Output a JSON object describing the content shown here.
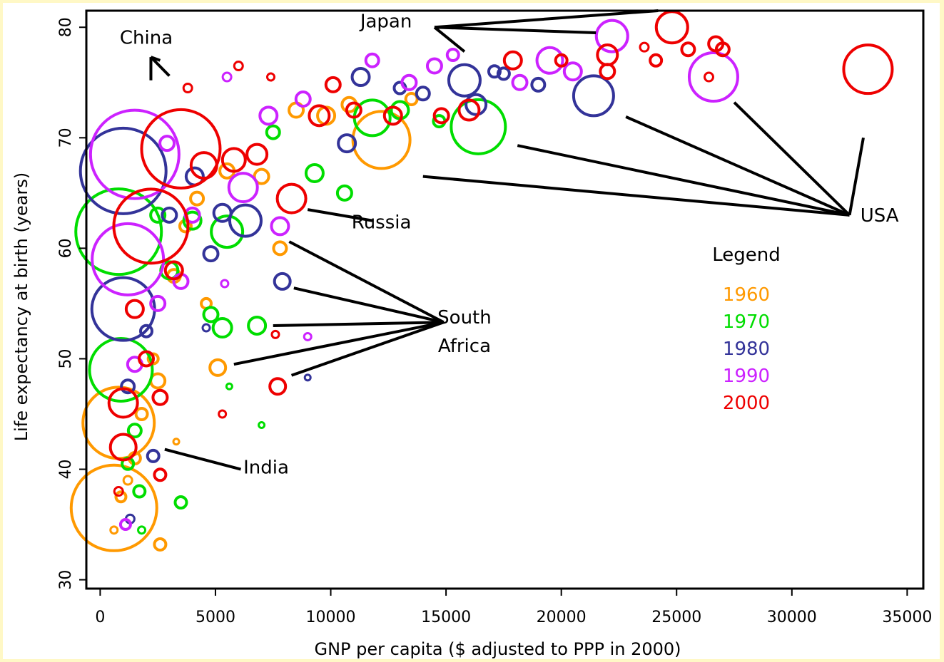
{
  "chart_data": {
    "type": "scatter",
    "title": "",
    "xlabel": "GNP per capita ($ adjusted to PPP in 2000)",
    "ylabel": "Life expectancy at birth (years)",
    "xlim": [
      -600,
      35700
    ],
    "ylim": [
      29.2,
      81.5
    ],
    "x_ticks": [
      0,
      5000,
      10000,
      15000,
      20000,
      25000,
      30000,
      35000
    ],
    "x_tick_labels": [
      "0",
      "5000",
      "10000",
      "15000",
      "20000",
      "25000",
      "30000",
      "35000"
    ],
    "y_ticks": [
      30,
      40,
      50,
      60,
      70,
      80
    ],
    "y_tick_labels": [
      "30",
      "40",
      "50",
      "60",
      "70",
      "80"
    ],
    "grid": false,
    "legend": {
      "title": "Legend",
      "position": "right",
      "entries": [
        {
          "label": "1960",
          "color": "#ff9900"
        },
        {
          "label": "1970",
          "color": "#00dd00"
        },
        {
          "label": "1980",
          "color": "#333399"
        },
        {
          "label": "1990",
          "color": "#cc22ff"
        },
        {
          "label": "2000",
          "color": "#ee0000"
        }
      ]
    },
    "marker_note": "bubble size proportional to population",
    "series": [
      {
        "name": "1960",
        "color": "#ff9900",
        "points": [
          {
            "x": 600,
            "y": 36.5,
            "r": 60
          },
          {
            "x": 800,
            "y": 44.2,
            "r": 50
          },
          {
            "x": 12200,
            "y": 69.8,
            "r": 40
          },
          {
            "x": 5100,
            "y": 49.2,
            "r": 11
          },
          {
            "x": 7800,
            "y": 60.0,
            "r": 9
          },
          {
            "x": 2500,
            "y": 48.0,
            "r": 10
          },
          {
            "x": 1500,
            "y": 41.0,
            "r": 8
          },
          {
            "x": 2600,
            "y": 33.2,
            "r": 8
          },
          {
            "x": 3200,
            "y": 57.5,
            "r": 9
          },
          {
            "x": 4200,
            "y": 64.5,
            "r": 9
          },
          {
            "x": 8500,
            "y": 72.5,
            "r": 10
          },
          {
            "x": 9800,
            "y": 72.0,
            "r": 12
          },
          {
            "x": 10800,
            "y": 73.0,
            "r": 10
          },
          {
            "x": 7000,
            "y": 66.5,
            "r": 10
          },
          {
            "x": 900,
            "y": 37.5,
            "r": 7
          },
          {
            "x": 1800,
            "y": 45.0,
            "r": 8
          },
          {
            "x": 2300,
            "y": 50.0,
            "r": 7
          },
          {
            "x": 3700,
            "y": 62.0,
            "r": 8
          },
          {
            "x": 5500,
            "y": 67.0,
            "r": 10
          },
          {
            "x": 600,
            "y": 34.5,
            "r": 5
          },
          {
            "x": 1200,
            "y": 39.0,
            "r": 6
          },
          {
            "x": 3300,
            "y": 42.5,
            "r": 4
          },
          {
            "x": 13500,
            "y": 73.5,
            "r": 8
          },
          {
            "x": 4600,
            "y": 55.0,
            "r": 7
          }
        ]
      },
      {
        "name": "1970",
        "color": "#00dd00",
        "points": [
          {
            "x": 800,
            "y": 61.5,
            "r": 60
          },
          {
            "x": 900,
            "y": 49.0,
            "r": 44
          },
          {
            "x": 16400,
            "y": 71.0,
            "r": 38
          },
          {
            "x": 6800,
            "y": 53.0,
            "r": 12
          },
          {
            "x": 5300,
            "y": 52.8,
            "r": 13
          },
          {
            "x": 4800,
            "y": 54.0,
            "r": 10
          },
          {
            "x": 9300,
            "y": 66.8,
            "r": 12
          },
          {
            "x": 10600,
            "y": 65.0,
            "r": 10
          },
          {
            "x": 11800,
            "y": 71.8,
            "r": 25
          },
          {
            "x": 13000,
            "y": 72.5,
            "r": 12
          },
          {
            "x": 5500,
            "y": 61.5,
            "r": 22
          },
          {
            "x": 3500,
            "y": 37.0,
            "r": 8
          },
          {
            "x": 1700,
            "y": 38.0,
            "r": 8
          },
          {
            "x": 1500,
            "y": 43.5,
            "r": 9
          },
          {
            "x": 3000,
            "y": 58.0,
            "r": 12
          },
          {
            "x": 4000,
            "y": 62.5,
            "r": 12
          },
          {
            "x": 2500,
            "y": 63.0,
            "r": 10
          },
          {
            "x": 7500,
            "y": 70.5,
            "r": 9
          },
          {
            "x": 14700,
            "y": 71.5,
            "r": 8
          },
          {
            "x": 1200,
            "y": 40.5,
            "r": 8
          },
          {
            "x": 1800,
            "y": 34.5,
            "r": 5
          },
          {
            "x": 7000,
            "y": 44.0,
            "r": 4
          },
          {
            "x": 5600,
            "y": 47.5,
            "r": 4
          }
        ]
      },
      {
        "name": "1980",
        "color": "#333399",
        "points": [
          {
            "x": 1000,
            "y": 67.0,
            "r": 60
          },
          {
            "x": 1000,
            "y": 54.5,
            "r": 44
          },
          {
            "x": 21400,
            "y": 73.8,
            "r": 28
          },
          {
            "x": 7900,
            "y": 57.0,
            "r": 11
          },
          {
            "x": 6300,
            "y": 62.5,
            "r": 22
          },
          {
            "x": 15800,
            "y": 75.2,
            "r": 22
          },
          {
            "x": 16300,
            "y": 73.0,
            "r": 14
          },
          {
            "x": 11300,
            "y": 75.5,
            "r": 12
          },
          {
            "x": 10700,
            "y": 69.5,
            "r": 12
          },
          {
            "x": 4800,
            "y": 59.5,
            "r": 10
          },
          {
            "x": 5300,
            "y": 63.2,
            "r": 12
          },
          {
            "x": 2300,
            "y": 41.2,
            "r": 8
          },
          {
            "x": 1200,
            "y": 47.5,
            "r": 9
          },
          {
            "x": 3000,
            "y": 63.0,
            "r": 10
          },
          {
            "x": 4100,
            "y": 66.5,
            "r": 12
          },
          {
            "x": 19000,
            "y": 74.8,
            "r": 9
          },
          {
            "x": 17500,
            "y": 75.8,
            "r": 8
          },
          {
            "x": 9000,
            "y": 48.3,
            "r": 4
          },
          {
            "x": 1300,
            "y": 35.5,
            "r": 6
          },
          {
            "x": 2000,
            "y": 52.5,
            "r": 8
          },
          {
            "x": 14000,
            "y": 74.0,
            "r": 9
          },
          {
            "x": 17100,
            "y": 76.0,
            "r": 8
          },
          {
            "x": 13000,
            "y": 74.5,
            "r": 8
          },
          {
            "x": 4600,
            "y": 52.8,
            "r": 5
          }
        ]
      },
      {
        "name": "1990",
        "color": "#cc22ff",
        "points": [
          {
            "x": 1500,
            "y": 68.5,
            "r": 62
          },
          {
            "x": 1200,
            "y": 59.0,
            "r": 50
          },
          {
            "x": 26600,
            "y": 75.5,
            "r": 34
          },
          {
            "x": 22200,
            "y": 79.2,
            "r": 22
          },
          {
            "x": 7800,
            "y": 62.0,
            "r": 12
          },
          {
            "x": 9000,
            "y": 52.0,
            "r": 5
          },
          {
            "x": 6200,
            "y": 65.5,
            "r": 20
          },
          {
            "x": 5500,
            "y": 75.5,
            "r": 6
          },
          {
            "x": 4000,
            "y": 63.0,
            "r": 10
          },
          {
            "x": 3500,
            "y": 57.0,
            "r": 10
          },
          {
            "x": 2500,
            "y": 55.0,
            "r": 10
          },
          {
            "x": 1500,
            "y": 49.5,
            "r": 10
          },
          {
            "x": 19500,
            "y": 77.0,
            "r": 18
          },
          {
            "x": 20500,
            "y": 76.0,
            "r": 12
          },
          {
            "x": 18200,
            "y": 75.0,
            "r": 10
          },
          {
            "x": 11800,
            "y": 77.0,
            "r": 9
          },
          {
            "x": 13400,
            "y": 75.0,
            "r": 10
          },
          {
            "x": 8800,
            "y": 73.5,
            "r": 10
          },
          {
            "x": 14500,
            "y": 76.5,
            "r": 10
          },
          {
            "x": 7300,
            "y": 72.0,
            "r": 12
          },
          {
            "x": 5400,
            "y": 56.8,
            "r": 5
          },
          {
            "x": 1100,
            "y": 35.0,
            "r": 7
          },
          {
            "x": 2900,
            "y": 69.5,
            "r": 10
          },
          {
            "x": 15300,
            "y": 77.5,
            "r": 8
          }
        ]
      },
      {
        "name": "2000",
        "color": "#ee0000",
        "points": [
          {
            "x": 3500,
            "y": 69.0,
            "r": 55
          },
          {
            "x": 2200,
            "y": 62.0,
            "r": 52
          },
          {
            "x": 33300,
            "y": 76.2,
            "r": 34
          },
          {
            "x": 24800,
            "y": 80.0,
            "r": 22
          },
          {
            "x": 7700,
            "y": 47.5,
            "r": 11
          },
          {
            "x": 8300,
            "y": 64.5,
            "r": 20
          },
          {
            "x": 7600,
            "y": 52.2,
            "r": 5
          },
          {
            "x": 5300,
            "y": 45.0,
            "r": 5
          },
          {
            "x": 16000,
            "y": 72.5,
            "r": 14
          },
          {
            "x": 17900,
            "y": 77.0,
            "r": 12
          },
          {
            "x": 22000,
            "y": 77.5,
            "r": 14
          },
          {
            "x": 22000,
            "y": 76.0,
            "r": 10
          },
          {
            "x": 25500,
            "y": 78.0,
            "r": 9
          },
          {
            "x": 26700,
            "y": 78.5,
            "r": 10
          },
          {
            "x": 27000,
            "y": 78.0,
            "r": 9
          },
          {
            "x": 26400,
            "y": 75.5,
            "r": 6
          },
          {
            "x": 20000,
            "y": 77.0,
            "r": 8
          },
          {
            "x": 12700,
            "y": 72.0,
            "r": 12
          },
          {
            "x": 9500,
            "y": 72.0,
            "r": 14
          },
          {
            "x": 10100,
            "y": 74.8,
            "r": 10
          },
          {
            "x": 4500,
            "y": 67.5,
            "r": 18
          },
          {
            "x": 5800,
            "y": 68.0,
            "r": 16
          },
          {
            "x": 6800,
            "y": 68.5,
            "r": 14
          },
          {
            "x": 1000,
            "y": 46.0,
            "r": 20
          },
          {
            "x": 1000,
            "y": 42.0,
            "r": 18
          },
          {
            "x": 1500,
            "y": 54.5,
            "r": 12
          },
          {
            "x": 2600,
            "y": 46.5,
            "r": 10
          },
          {
            "x": 2600,
            "y": 39.5,
            "r": 8
          },
          {
            "x": 800,
            "y": 38.0,
            "r": 6
          },
          {
            "x": 3800,
            "y": 74.5,
            "r": 6
          },
          {
            "x": 6000,
            "y": 76.5,
            "r": 6
          },
          {
            "x": 7400,
            "y": 75.5,
            "r": 5
          },
          {
            "x": 14800,
            "y": 72.0,
            "r": 10
          },
          {
            "x": 11000,
            "y": 72.5,
            "r": 10
          },
          {
            "x": 24100,
            "y": 77.0,
            "r": 8
          },
          {
            "x": 23600,
            "y": 78.2,
            "r": 6
          },
          {
            "x": 2000,
            "y": 50.0,
            "r": 10
          },
          {
            "x": 3200,
            "y": 58.0,
            "r": 12
          }
        ]
      }
    ],
    "annotations": [
      {
        "text": "China",
        "x": 2000,
        "y": 78.5
      },
      {
        "text": "Japan",
        "x": 12400,
        "y": 80.0
      },
      {
        "text": "Russia",
        "x": 12200,
        "y": 61.8
      },
      {
        "text": "South",
        "x": 15800,
        "y": 53.2
      },
      {
        "text": "Africa",
        "x": 15800,
        "y": 50.6
      },
      {
        "text": "USA",
        "x": 33800,
        "y": 62.4
      },
      {
        "text": "India",
        "x": 7200,
        "y": 39.6
      }
    ],
    "leader_lines": [
      {
        "from": [
          2200,
          75.2
        ],
        "to": [
          2200,
          77.3
        ]
      },
      {
        "from": [
          2200,
          77.3
        ],
        "to": [
          2600,
          77.0
        ]
      },
      {
        "from": [
          2200,
          77.3
        ],
        "to": [
          3000,
          75.6
        ]
      },
      {
        "from": [
          14500,
          80.0
        ],
        "to": [
          24200,
          81.5
        ]
      },
      {
        "from": [
          14500,
          80.0
        ],
        "to": [
          21500,
          79.5
        ]
      },
      {
        "from": [
          14500,
          80.0
        ],
        "to": [
          15800,
          77.8
        ]
      },
      {
        "from": [
          32500,
          63.0
        ],
        "to": [
          33100,
          70.0
        ]
      },
      {
        "from": [
          32500,
          63.0
        ],
        "to": [
          27500,
          73.2
        ]
      },
      {
        "from": [
          32500,
          63.0
        ],
        "to": [
          22800,
          71.9
        ]
      },
      {
        "from": [
          32500,
          63.0
        ],
        "to": [
          18100,
          69.3
        ]
      },
      {
        "from": [
          32500,
          63.0
        ],
        "to": [
          14000,
          66.5
        ]
      },
      {
        "from": [
          9000,
          63.5
        ],
        "to": [
          11800,
          62.5
        ]
      },
      {
        "from": [
          14900,
          53.3
        ],
        "to": [
          8200,
          60.6
        ]
      },
      {
        "from": [
          14900,
          53.3
        ],
        "to": [
          8400,
          56.4
        ]
      },
      {
        "from": [
          14900,
          53.3
        ],
        "to": [
          7500,
          53.0
        ]
      },
      {
        "from": [
          14900,
          53.3
        ],
        "to": [
          5800,
          49.5
        ]
      },
      {
        "from": [
          14900,
          53.3
        ],
        "to": [
          8300,
          48.5
        ]
      },
      {
        "from": [
          2800,
          41.8
        ],
        "to": [
          6100,
          40.0
        ]
      }
    ]
  }
}
